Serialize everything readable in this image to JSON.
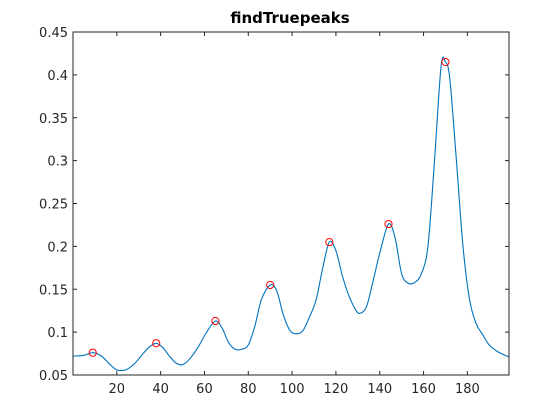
{
  "chart_data": {
    "type": "line",
    "title": "findTruepeaks",
    "xlabel": "",
    "ylabel": "",
    "xlim": [
      0,
      199
    ],
    "ylim": [
      0.05,
      0.45
    ],
    "xticks": [
      20,
      40,
      60,
      80,
      100,
      120,
      140,
      160,
      180
    ],
    "xtick_labels": [
      "20",
      "40",
      "60",
      "80",
      "100",
      "120",
      "140",
      "160",
      "180"
    ],
    "yticks": [
      0.05,
      0.1,
      0.15,
      0.2,
      0.25,
      0.3,
      0.35,
      0.4,
      0.45
    ],
    "ytick_labels": [
      "0.05",
      "0.1",
      "0.15",
      "0.2",
      "0.25",
      "0.3",
      "0.35",
      "0.4",
      "0.45"
    ],
    "grid": false,
    "line_color": "#0072BD",
    "marker_color": "#FF0000",
    "series": [
      {
        "x": [
          0,
          5,
          9,
          13,
          17,
          20,
          24,
          28,
          32,
          35,
          38,
          41,
          44,
          47,
          50,
          53,
          57,
          61,
          65,
          68,
          71,
          74,
          77,
          80,
          83,
          86,
          90,
          93,
          96,
          99,
          102,
          105,
          108,
          111,
          114,
          117,
          120,
          123,
          126,
          129,
          131,
          134,
          137,
          140,
          144,
          147,
          150,
          153,
          156,
          159,
          162,
          165,
          168,
          170,
          172,
          175,
          178,
          181,
          184,
          187,
          190,
          194,
          199
        ],
        "y": [
          0.072,
          0.073,
          0.076,
          0.072,
          0.062,
          0.056,
          0.056,
          0.063,
          0.075,
          0.083,
          0.087,
          0.082,
          0.072,
          0.064,
          0.062,
          0.068,
          0.082,
          0.1,
          0.113,
          0.105,
          0.088,
          0.08,
          0.08,
          0.085,
          0.107,
          0.138,
          0.155,
          0.148,
          0.12,
          0.102,
          0.098,
          0.102,
          0.118,
          0.138,
          0.175,
          0.205,
          0.195,
          0.165,
          0.142,
          0.126,
          0.122,
          0.13,
          0.16,
          0.192,
          0.226,
          0.21,
          0.168,
          0.157,
          0.158,
          0.168,
          0.2,
          0.3,
          0.41,
          0.415,
          0.395,
          0.3,
          0.2,
          0.138,
          0.11,
          0.097,
          0.085,
          0.077,
          0.071
        ]
      }
    ],
    "peaks": {
      "x": [
        9,
        38,
        65,
        90,
        117,
        144,
        170
      ],
      "y": [
        0.076,
        0.087,
        0.113,
        0.155,
        0.205,
        0.226,
        0.415
      ]
    }
  }
}
